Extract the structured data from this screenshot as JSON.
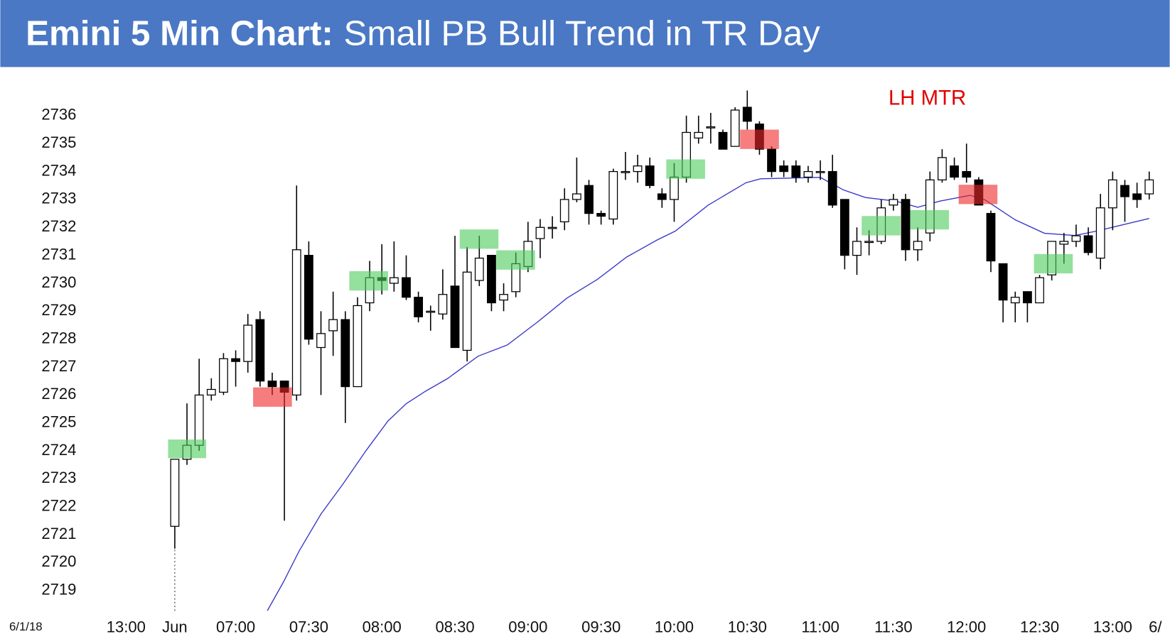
{
  "chart_data": {
    "type": "candlestick",
    "title": "Emini 5 Min Chart:",
    "subtitle": "Small PB Bull Trend in TR Day",
    "date_label": "6/1/18",
    "annotations": [
      "LH MTR"
    ],
    "up_color": "#ffffff",
    "down_color": "#000000",
    "ylim": [
      2718.3,
      2737.5
    ],
    "yticks": [
      2719,
      2720,
      2721,
      2722,
      2723,
      2724,
      2725,
      2726,
      2727,
      2728,
      2729,
      2730,
      2731,
      2732,
      2733,
      2734,
      2735,
      2736
    ],
    "xlim": [
      -6,
      81.5
    ],
    "xticks": [
      {
        "value": -4,
        "label": "13:00"
      },
      {
        "value": 0,
        "label": "Jun"
      },
      {
        "value": 5,
        "label": "07:00"
      },
      {
        "value": 11,
        "label": "07:30"
      },
      {
        "value": 17,
        "label": "08:00"
      },
      {
        "value": 23,
        "label": "08:30"
      },
      {
        "value": 29,
        "label": "09:00"
      },
      {
        "value": 35,
        "label": "09:30"
      },
      {
        "value": 41,
        "label": "10:00"
      },
      {
        "value": 47,
        "label": "10:30"
      },
      {
        "value": 53,
        "label": "11:00"
      },
      {
        "value": 59,
        "label": "11:30"
      },
      {
        "value": 65,
        "label": "12:00"
      },
      {
        "value": 71,
        "label": "12:30"
      },
      {
        "value": 77,
        "label": "13:00"
      },
      {
        "value": 80.5,
        "label": "6/"
      }
    ],
    "open": [
      2721.3,
      2723.7,
      2724.2,
      2726.0,
      2726.1,
      2727.3,
      2727.2,
      2728.7,
      2726.5,
      2726.5,
      2726.0,
      2731.0,
      2727.7,
      2728.3,
      2728.7,
      2726.3,
      2729.3,
      2730.2,
      2730.0,
      2730.2,
      2729.5,
      2729.0,
      2728.9,
      2729.9,
      2727.6,
      2730.1,
      2731.0,
      2729.4,
      2729.7,
      2730.6,
      2731.6,
      2732.0,
      2732.2,
      2733.0,
      2733.5,
      2732.5,
      2732.3,
      2734.0,
      2734.0,
      2734.2,
      2733.2,
      2733.0,
      2733.8,
      2735.2,
      2735.6,
      2735.4,
      2734.9,
      2736.3,
      2735.7,
      2734.8,
      2734.2,
      2734.2,
      2733.8,
      2734.0,
      2734.0,
      2733.0,
      2731.0,
      2731.5,
      2731.5,
      2732.8,
      2733.0,
      2731.2,
      2731.8,
      2733.7,
      2734.2,
      2734.0,
      2733.7,
      2732.5,
      2730.7,
      2729.3,
      2729.7,
      2729.3,
      2730.3,
      2731.4,
      2731.5,
      2731.7,
      2730.9,
      2732.7,
      2733.5,
      2733.2,
      2733.2
    ],
    "high": [
      2723.7,
      2725.7,
      2727.3,
      2726.6,
      2727.5,
      2727.6,
      2728.9,
      2729.0,
      2726.8,
      2726.5,
      2733.5,
      2731.5,
      2729.0,
      2729.7,
      2729.0,
      2729.5,
      2730.8,
      2731.4,
      2731.5,
      2731.0,
      2729.7,
      2729.2,
      2730.5,
      2731.7,
      2731.3,
      2731.7,
      2731.0,
      2730.0,
      2731.1,
      2732.2,
      2732.3,
      2732.4,
      2733.4,
      2734.5,
      2733.7,
      2732.6,
      2734.1,
      2734.7,
      2734.6,
      2734.5,
      2733.4,
      2734.3,
      2736.0,
      2736.0,
      2736.1,
      2735.5,
      2736.3,
      2736.9,
      2735.8,
      2734.9,
      2734.4,
      2734.4,
      2734.2,
      2734.4,
      2734.6,
      2733.0,
      2732.0,
      2731.9,
      2733.0,
      2733.2,
      2733.2,
      2732.0,
      2734.0,
      2734.8,
      2734.5,
      2735.0,
      2733.8,
      2732.6,
      2730.7,
      2729.7,
      2729.7,
      2730.3,
      2731.5,
      2731.8,
      2732.1,
      2732.0,
      2733.2,
      2734.0,
      2733.7,
      2733.6,
      2734.0
    ],
    "low": [
      2720.5,
      2723.5,
      2724.0,
      2725.8,
      2726.0,
      2726.3,
      2726.8,
      2726.3,
      2726.0,
      2721.5,
      2725.8,
      2727.8,
      2726.0,
      2727.4,
      2725.0,
      2726.3,
      2729.0,
      2729.6,
      2729.7,
      2729.4,
      2728.6,
      2728.3,
      2728.7,
      2727.7,
      2727.2,
      2729.9,
      2729.0,
      2729.0,
      2729.5,
      2730.4,
      2730.9,
      2731.6,
      2731.9,
      2732.9,
      2732.1,
      2732.1,
      2732.1,
      2733.7,
      2733.6,
      2733.4,
      2732.7,
      2732.2,
      2733.6,
      2735.0,
      2735.0,
      2734.8,
      2734.9,
      2735.5,
      2734.6,
      2733.8,
      2733.8,
      2733.6,
      2733.6,
      2733.7,
      2732.7,
      2730.5,
      2730.3,
      2731.0,
      2731.4,
      2732.6,
      2730.8,
      2730.8,
      2731.5,
      2733.6,
      2733.7,
      2733.6,
      2732.8,
      2730.4,
      2728.6,
      2728.6,
      2728.6,
      2729.3,
      2730.1,
      2730.7,
      2731.3,
      2731.0,
      2730.5,
      2731.9,
      2732.2,
      2732.7,
      2733.0
    ],
    "close": [
      2723.7,
      2724.2,
      2726.0,
      2726.2,
      2727.3,
      2727.2,
      2728.5,
      2726.5,
      2726.3,
      2726.1,
      2731.2,
      2728.0,
      2728.2,
      2728.7,
      2726.3,
      2729.2,
      2730.2,
      2730.1,
      2730.2,
      2729.5,
      2728.8,
      2729.0,
      2729.6,
      2727.7,
      2730.4,
      2730.9,
      2729.3,
      2729.6,
      2730.7,
      2731.5,
      2732.0,
      2732.0,
      2733.0,
      2733.2,
      2732.5,
      2732.4,
      2734.0,
      2734.0,
      2734.2,
      2733.5,
      2733.0,
      2733.8,
      2735.4,
      2735.4,
      2735.6,
      2734.8,
      2736.2,
      2735.8,
      2734.8,
      2734.0,
      2734.0,
      2733.8,
      2734.0,
      2734.0,
      2732.8,
      2731.0,
      2731.5,
      2731.5,
      2732.7,
      2733.0,
      2731.2,
      2731.5,
      2733.7,
      2734.5,
      2733.8,
      2733.8,
      2732.8,
      2730.8,
      2729.4,
      2729.5,
      2729.3,
      2730.2,
      2731.5,
      2731.5,
      2731.7,
      2731.1,
      2732.7,
      2733.7,
      2733.1,
      2733.0,
      2733.7
    ],
    "ema": {
      "color": "#3838c8",
      "x": [
        7.6,
        8.9,
        10.2,
        12.0,
        13.8,
        15.7,
        17.5,
        19.0,
        20.6,
        22.4,
        24.9,
        27.3,
        29.8,
        32.2,
        34.7,
        37.1,
        39.6,
        41.1,
        43.8,
        46.9,
        48.1,
        53.0,
        54.9,
        56.7,
        59.2,
        61.0,
        62.8,
        65.3,
        66.5,
        69.0,
        71.4,
        73.9,
        75.7,
        77.5,
        80.0
      ],
      "values": [
        2718.28,
        2719.29,
        2720.41,
        2721.74,
        2722.81,
        2724.01,
        2725.07,
        2725.69,
        2726.14,
        2726.59,
        2727.39,
        2727.79,
        2728.62,
        2729.47,
        2730.14,
        2730.94,
        2731.55,
        2731.87,
        2732.8,
        2733.6,
        2733.74,
        2733.79,
        2733.34,
        2733.07,
        2732.94,
        2732.72,
        2732.94,
        2733.15,
        2732.99,
        2732.27,
        2731.79,
        2731.71,
        2731.87,
        2732.06,
        2732.32
      ]
    }
  }
}
